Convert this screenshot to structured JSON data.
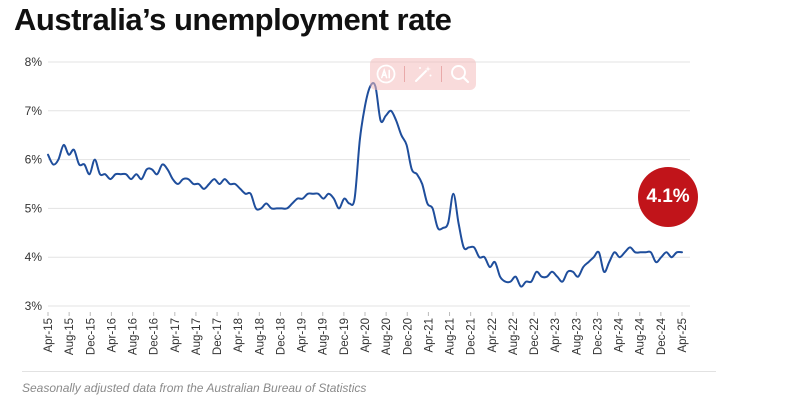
{
  "title": "Australia’s unemployment rate",
  "footnote": "Seasonally adjusted data from the Australian Bureau of Statistics",
  "badge": {
    "label": "4.1%",
    "color": "#c1141a"
  },
  "toolbar": {
    "icons": [
      "ai-icon",
      "magic-wand-icon",
      "search-icon"
    ],
    "color": "#f4bebe"
  },
  "colors": {
    "line": "#1f4e9c",
    "grid": "#e3e3e3",
    "axis_text": "#333333"
  },
  "chart_data": {
    "type": "line",
    "title": "Australia’s unemployment rate",
    "ylim": [
      3,
      8
    ],
    "yticks": [
      3,
      4,
      5,
      6,
      7,
      8
    ],
    "ytick_labels": [
      "3%",
      "4%",
      "5%",
      "6%",
      "7%",
      "8%"
    ],
    "y_unit": "%",
    "grid": true,
    "xtick_labels": [
      "Apr-15",
      "Aug-15",
      "Dec-15",
      "Apr-16",
      "Aug-16",
      "Dec-16",
      "Apr-17",
      "Aug-17",
      "Dec-17",
      "Apr-18",
      "Aug-18",
      "Dec-18",
      "Apr-19",
      "Aug-19",
      "Dec-19",
      "Apr-20",
      "Aug-20",
      "Dec-20",
      "Apr-21",
      "Aug-21",
      "Dec-21",
      "Apr-22",
      "Aug-22",
      "Dec-22",
      "Apr-23",
      "Aug-23",
      "Dec-23",
      "Apr-24",
      "Aug-24",
      "Dec-24",
      "Apr-25"
    ],
    "x_start": "Apr-15",
    "x_end": "Apr-25",
    "series": [
      {
        "values": [
          6.1,
          5.9,
          6.0,
          6.3,
          6.1,
          6.2,
          5.9,
          5.9,
          5.7,
          6.0,
          5.7,
          5.7,
          5.6,
          5.7,
          5.7,
          5.7,
          5.6,
          5.7,
          5.6,
          5.8,
          5.8,
          5.7,
          5.9,
          5.8,
          5.6,
          5.5,
          5.6,
          5.6,
          5.5,
          5.5,
          5.4,
          5.5,
          5.6,
          5.5,
          5.6,
          5.5,
          5.5,
          5.4,
          5.3,
          5.3,
          5.0,
          5.0,
          5.1,
          5.0,
          5.0,
          5.0,
          5.0,
          5.1,
          5.2,
          5.2,
          5.3,
          5.3,
          5.3,
          5.2,
          5.3,
          5.2,
          5.0,
          5.2,
          5.1,
          5.2,
          6.4,
          7.1,
          7.5,
          7.5,
          6.8,
          6.9,
          7.0,
          6.8,
          6.5,
          6.3,
          5.8,
          5.7,
          5.5,
          5.1,
          5.0,
          4.6,
          4.6,
          4.7,
          5.3,
          4.7,
          4.2,
          4.2,
          4.2,
          4.0,
          4.0,
          3.8,
          3.9,
          3.6,
          3.5,
          3.5,
          3.6,
          3.4,
          3.5,
          3.5,
          3.7,
          3.6,
          3.6,
          3.7,
          3.6,
          3.5,
          3.7,
          3.7,
          3.6,
          3.8,
          3.9,
          4.0,
          4.1,
          3.7,
          3.9,
          4.1,
          4.0,
          4.1,
          4.2,
          4.1,
          4.1,
          4.1,
          4.1,
          3.9,
          4.0,
          4.1,
          4.0,
          4.1,
          4.1
        ]
      }
    ]
  }
}
